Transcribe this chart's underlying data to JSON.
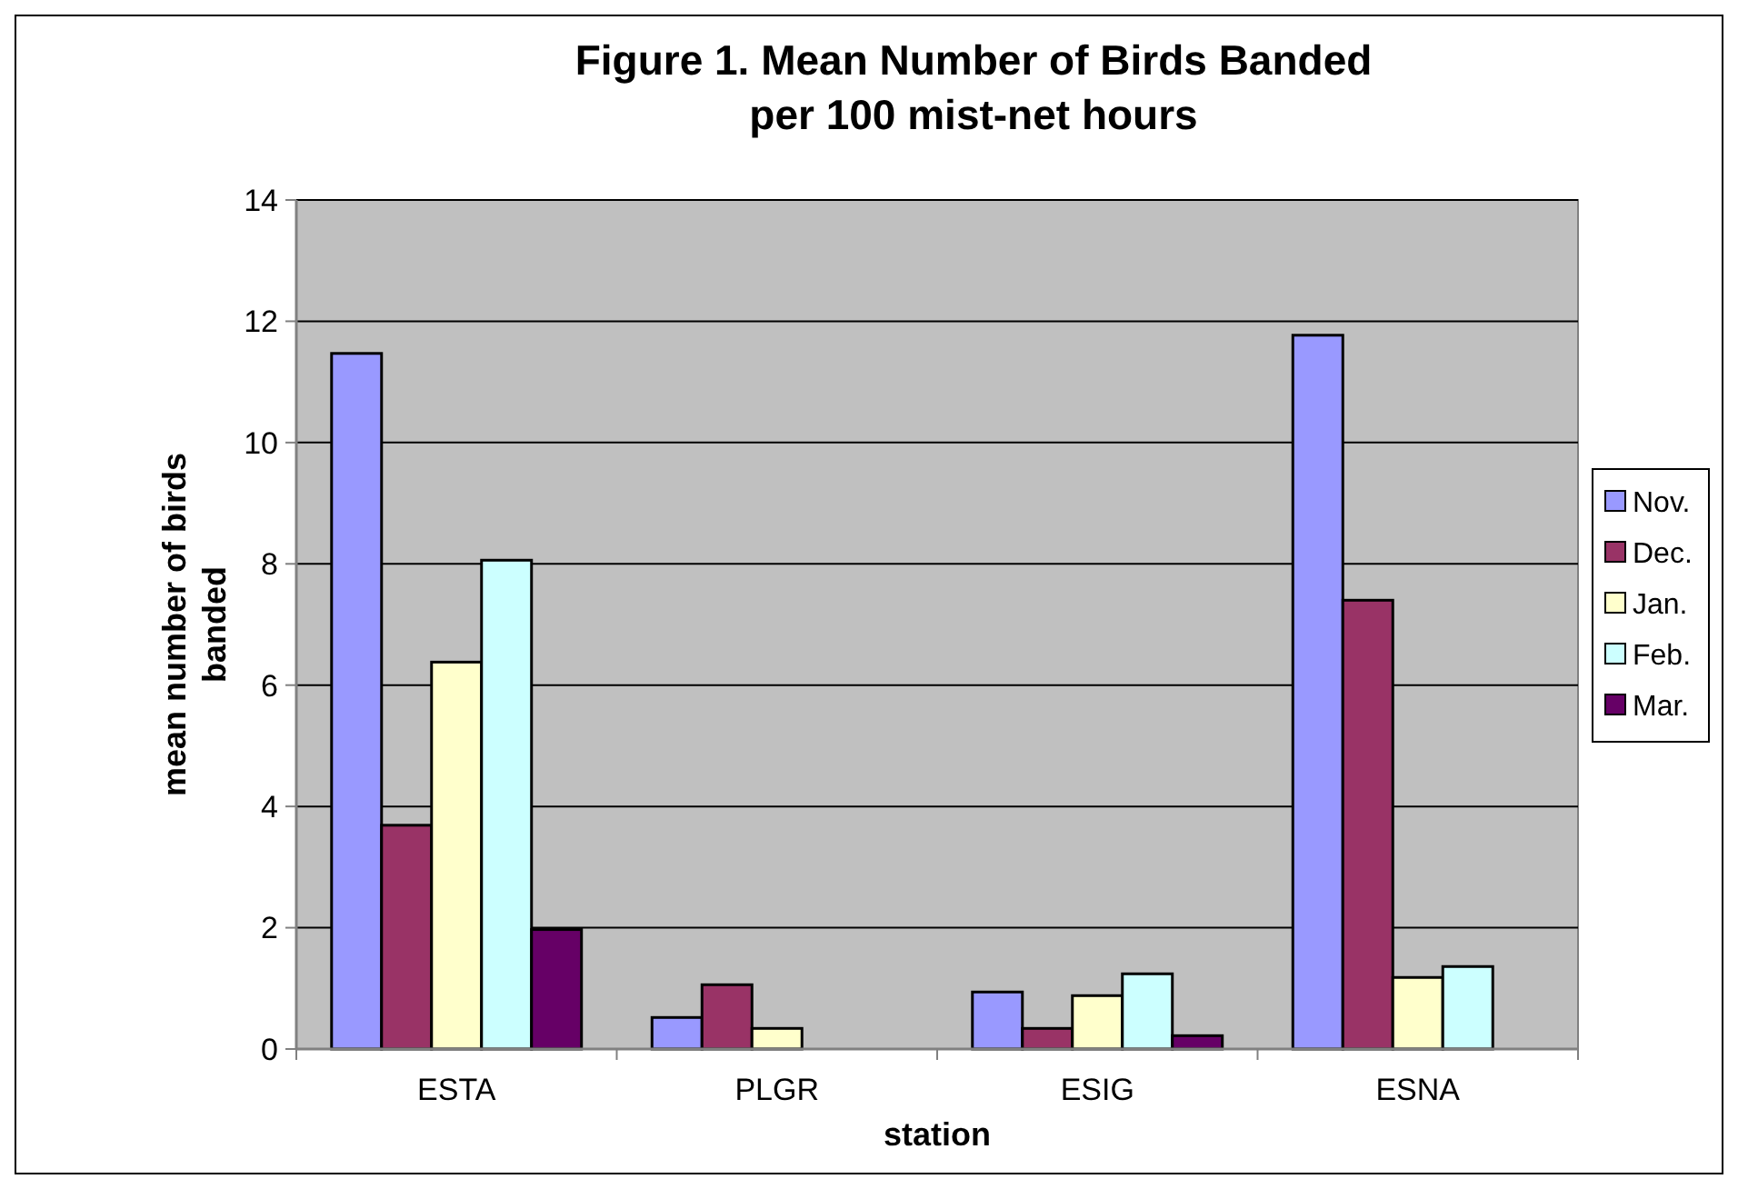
{
  "chart_data": {
    "type": "bar",
    "title": "Figure 1. Mean Number of Birds Banded\nper 100 mist-net hours",
    "xlabel": "station",
    "ylabel": "mean number of birds\nbanded",
    "categories": [
      "ESTA",
      "PLGR",
      "ESIG",
      "ESNA"
    ],
    "series": [
      {
        "name": "Nov.",
        "color": "#9999ff",
        "values": [
          11.47,
          0.52,
          0.94,
          11.77
        ]
      },
      {
        "name": "Dec.",
        "color": "#993366",
        "values": [
          3.69,
          1.06,
          0.34,
          7.4
        ]
      },
      {
        "name": "Jan.",
        "color": "#ffffcc",
        "values": [
          6.38,
          0.34,
          0.88,
          1.18
        ]
      },
      {
        "name": "Feb.",
        "color": "#ccffff",
        "values": [
          8.06,
          null,
          1.24,
          1.36
        ]
      },
      {
        "name": "Mar.",
        "color": "#660066",
        "values": [
          1.97,
          null,
          0.22,
          null
        ]
      }
    ],
    "ylim": [
      0,
      14
    ],
    "yticks": [
      0,
      2,
      4,
      6,
      8,
      10,
      12,
      14
    ],
    "grid": "y",
    "legend": "right"
  }
}
